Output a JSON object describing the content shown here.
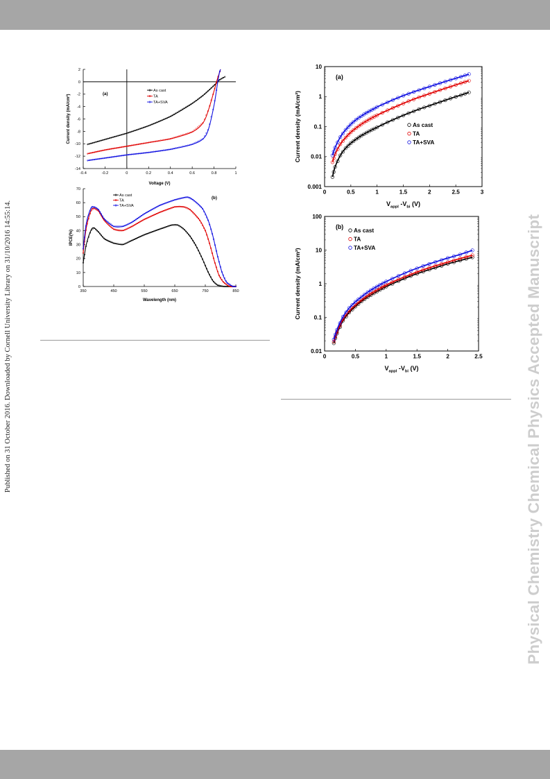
{
  "page": {
    "side_note": "Published on 31 October 2016. Downloaded by Cornell University Library on 31/10/2016 14:55:14.",
    "watermark": "Physical Chemistry Chemical Physics Accepted Manuscript",
    "colors": {
      "band": "#a6a6a6",
      "black": "#000000",
      "red": "#e00000",
      "blue": "#1010e0",
      "watermark": "#cdcdcd"
    }
  },
  "chart_data": [
    {
      "type": "line",
      "panel_label": "(a)",
      "xlabel": "Voltage (V)",
      "ylabel": "Current density (mA/cm²)",
      "xlim": [
        -0.4,
        1
      ],
      "ylim": [
        -14,
        2
      ],
      "x_ticks": [
        "-0.4",
        "-0.2",
        "0",
        "0.2",
        "0.4",
        "0.6",
        "0.8",
        "1"
      ],
      "y_ticks": [
        "2",
        "0",
        "-2",
        "-4",
        "-6",
        "-8",
        "-10",
        "-12",
        "-14"
      ],
      "legend": [
        "As cast",
        "TA",
        "TA+SVA"
      ],
      "legend_position": "top-center",
      "series": [
        {
          "name": "As cast",
          "color": "#000000",
          "points": [
            [
              -0.36,
              -10.1
            ],
            [
              -0.2,
              -9.3
            ],
            [
              0,
              -8.3
            ],
            [
              0.2,
              -7.1
            ],
            [
              0.4,
              -5.6
            ],
            [
              0.6,
              -3.5
            ],
            [
              0.7,
              -2.2
            ],
            [
              0.8,
              -0.6
            ],
            [
              0.85,
              0.3
            ],
            [
              0.9,
              0.8
            ]
          ]
        },
        {
          "name": "TA",
          "color": "#e00000",
          "points": [
            [
              -0.36,
              -11.6
            ],
            [
              -0.2,
              -11.0
            ],
            [
              0,
              -10.4
            ],
            [
              0.2,
              -9.8
            ],
            [
              0.4,
              -9.2
            ],
            [
              0.6,
              -8.1
            ],
            [
              0.7,
              -6.6
            ],
            [
              0.75,
              -4.5
            ],
            [
              0.8,
              -1.5
            ],
            [
              0.83,
              0.4
            ],
            [
              0.86,
              2.0
            ]
          ]
        },
        {
          "name": "TA+SVA",
          "color": "#1010e0",
          "points": [
            [
              -0.36,
              -12.7
            ],
            [
              -0.2,
              -12.3
            ],
            [
              0,
              -11.8
            ],
            [
              0.2,
              -11.4
            ],
            [
              0.4,
              -10.9
            ],
            [
              0.6,
              -10.1
            ],
            [
              0.7,
              -9.2
            ],
            [
              0.75,
              -7.6
            ],
            [
              0.8,
              -3.8
            ],
            [
              0.83,
              -0.5
            ],
            [
              0.85,
              1.5
            ],
            [
              0.86,
              2.0
            ]
          ]
        }
      ]
    },
    {
      "type": "line",
      "panel_label": "(b)",
      "xlabel": "Wavelength (nm)",
      "ylabel": "IPCE(%)",
      "xlim": [
        350,
        850
      ],
      "ylim": [
        0,
        70
      ],
      "x_ticks": [
        "350",
        "450",
        "550",
        "650",
        "750",
        "850"
      ],
      "y_ticks": [
        "70",
        "60",
        "50",
        "40",
        "30",
        "20",
        "10",
        "0"
      ],
      "legend": [
        "As cast",
        "TA",
        "TA+SVA"
      ],
      "legend_position": "top-left",
      "series": [
        {
          "name": "As cast",
          "color": "#000000",
          "points": [
            [
              350,
              17
            ],
            [
              360,
              30
            ],
            [
              375,
              40
            ],
            [
              385,
              42
            ],
            [
              400,
              39
            ],
            [
              420,
              34
            ],
            [
              450,
              31
            ],
            [
              480,
              30
            ],
            [
              510,
              33
            ],
            [
              550,
              37
            ],
            [
              600,
              41
            ],
            [
              640,
              44
            ],
            [
              660,
              44
            ],
            [
              680,
              41
            ],
            [
              700,
              36
            ],
            [
              720,
              29
            ],
            [
              740,
              20
            ],
            [
              760,
              10
            ],
            [
              775,
              4
            ],
            [
              790,
              1
            ],
            [
              810,
              0
            ],
            [
              850,
              0
            ]
          ]
        },
        {
          "name": "TA",
          "color": "#e00000",
          "points": [
            [
              350,
              24
            ],
            [
              360,
              42
            ],
            [
              375,
              54
            ],
            [
              385,
              56
            ],
            [
              400,
              54
            ],
            [
              420,
              47
            ],
            [
              450,
              41
            ],
            [
              480,
              40
            ],
            [
              510,
              43
            ],
            [
              550,
              48
            ],
            [
              600,
              53
            ],
            [
              650,
              57
            ],
            [
              680,
              57
            ],
            [
              700,
              55
            ],
            [
              730,
              48
            ],
            [
              750,
              40
            ],
            [
              765,
              30
            ],
            [
              780,
              18
            ],
            [
              795,
              8
            ],
            [
              810,
              3
            ],
            [
              830,
              0
            ],
            [
              850,
              0
            ]
          ]
        },
        {
          "name": "TA+SVA",
          "color": "#1010e0",
          "points": [
            [
              350,
              27
            ],
            [
              360,
              45
            ],
            [
              375,
              56
            ],
            [
              385,
              57
            ],
            [
              400,
              55
            ],
            [
              420,
              48
            ],
            [
              450,
              43
            ],
            [
              480,
              43
            ],
            [
              510,
              46
            ],
            [
              550,
              52
            ],
            [
              600,
              58
            ],
            [
              650,
              62
            ],
            [
              690,
              64
            ],
            [
              710,
              62
            ],
            [
              740,
              56
            ],
            [
              760,
              47
            ],
            [
              775,
              36
            ],
            [
              790,
              22
            ],
            [
              805,
              10
            ],
            [
              820,
              3
            ],
            [
              840,
              0
            ],
            [
              850,
              0
            ]
          ]
        }
      ]
    },
    {
      "type": "scatter",
      "panel_label": "(a)",
      "xlabel": "V_appl -V_bi (V)",
      "ylabel": "Current density (mA/cm²)",
      "xlim": [
        0,
        3
      ],
      "ylim": [
        0.001,
        10
      ],
      "y_scale": "log",
      "x_ticks": [
        "0",
        "0.5",
        "1",
        "1.5",
        "2",
        "2.5",
        "3"
      ],
      "y_ticks": [
        "10",
        "1",
        "0.1",
        "0.01",
        "0.001"
      ],
      "legend": [
        "As cast",
        "TA",
        "TA+SVA"
      ],
      "legend_position": "center-right",
      "fit_lines": true,
      "series": [
        {
          "name": "As cast",
          "color": "#000000",
          "points": [
            [
              0.15,
              0.0021
            ],
            [
              0.2,
              0.0045
            ],
            [
              0.3,
              0.011
            ],
            [
              0.4,
              0.019
            ],
            [
              0.5,
              0.028
            ],
            [
              0.6,
              0.038
            ],
            [
              0.7,
              0.05
            ],
            [
              0.8,
              0.063
            ],
            [
              0.9,
              0.078
            ],
            [
              1.0,
              0.095
            ],
            [
              1.2,
              0.14
            ],
            [
              1.4,
              0.2
            ],
            [
              1.6,
              0.28
            ],
            [
              1.8,
              0.38
            ],
            [
              2.0,
              0.5
            ],
            [
              2.2,
              0.66
            ],
            [
              2.4,
              0.87
            ],
            [
              2.6,
              1.12
            ],
            [
              2.75,
              1.38
            ]
          ]
        },
        {
          "name": "TA",
          "color": "#e00000",
          "points": [
            [
              0.15,
              0.0065
            ],
            [
              0.2,
              0.012
            ],
            [
              0.3,
              0.026
            ],
            [
              0.4,
              0.043
            ],
            [
              0.5,
              0.065
            ],
            [
              0.6,
              0.09
            ],
            [
              0.7,
              0.12
            ],
            [
              0.8,
              0.155
            ],
            [
              0.9,
              0.195
            ],
            [
              1.0,
              0.24
            ],
            [
              1.2,
              0.35
            ],
            [
              1.4,
              0.5
            ],
            [
              1.6,
              0.7
            ],
            [
              1.8,
              0.95
            ],
            [
              2.0,
              1.25
            ],
            [
              2.2,
              1.65
            ],
            [
              2.4,
              2.15
            ],
            [
              2.6,
              2.8
            ],
            [
              2.75,
              3.4
            ]
          ]
        },
        {
          "name": "TA+SVA",
          "color": "#1010e0",
          "points": [
            [
              0.15,
              0.011
            ],
            [
              0.2,
              0.02
            ],
            [
              0.3,
              0.045
            ],
            [
              0.4,
              0.078
            ],
            [
              0.5,
              0.12
            ],
            [
              0.6,
              0.17
            ],
            [
              0.7,
              0.225
            ],
            [
              0.8,
              0.29
            ],
            [
              0.9,
              0.36
            ],
            [
              1.0,
              0.45
            ],
            [
              1.2,
              0.65
            ],
            [
              1.4,
              0.92
            ],
            [
              1.6,
              1.25
            ],
            [
              1.8,
              1.65
            ],
            [
              2.0,
              2.15
            ],
            [
              2.2,
              2.8
            ],
            [
              2.4,
              3.6
            ],
            [
              2.6,
              4.6
            ],
            [
              2.75,
              5.6
            ]
          ]
        }
      ]
    },
    {
      "type": "scatter",
      "panel_label": "(b)",
      "xlabel": "V_appl -V_bi (V)",
      "ylabel": "Current density (mA/cm²)",
      "xlim": [
        0,
        2.5
      ],
      "ylim": [
        0.01,
        100
      ],
      "y_scale": "log",
      "x_ticks": [
        "0",
        "0.5",
        "1",
        "1.5",
        "2",
        "2.5"
      ],
      "y_ticks": [
        "100",
        "10",
        "1",
        "0.1",
        "0.01"
      ],
      "legend": [
        "As cast",
        "TA",
        "TA+SVA"
      ],
      "legend_position": "top-left",
      "fit_lines": true,
      "series": [
        {
          "name": "As cast",
          "color": "#000000",
          "points": [
            [
              0.15,
              0.017
            ],
            [
              0.2,
              0.033
            ],
            [
              0.3,
              0.08
            ],
            [
              0.4,
              0.14
            ],
            [
              0.5,
              0.21
            ],
            [
              0.6,
              0.3
            ],
            [
              0.7,
              0.4
            ],
            [
              0.8,
              0.52
            ],
            [
              0.9,
              0.66
            ],
            [
              1.0,
              0.82
            ],
            [
              1.2,
              1.2
            ],
            [
              1.4,
              1.7
            ],
            [
              1.6,
              2.3
            ],
            [
              1.8,
              3.0
            ],
            [
              2.0,
              3.9
            ],
            [
              2.2,
              4.9
            ],
            [
              2.4,
              6.1
            ]
          ]
        },
        {
          "name": "TA",
          "color": "#e00000",
          "points": [
            [
              0.15,
              0.019
            ],
            [
              0.2,
              0.036
            ],
            [
              0.3,
              0.088
            ],
            [
              0.4,
              0.155
            ],
            [
              0.5,
              0.235
            ],
            [
              0.6,
              0.33
            ],
            [
              0.7,
              0.45
            ],
            [
              0.8,
              0.58
            ],
            [
              0.9,
              0.74
            ],
            [
              1.0,
              0.92
            ],
            [
              1.2,
              1.35
            ],
            [
              1.4,
              1.9
            ],
            [
              1.6,
              2.6
            ],
            [
              1.8,
              3.4
            ],
            [
              2.0,
              4.4
            ],
            [
              2.2,
              5.6
            ],
            [
              2.4,
              7.0
            ]
          ]
        },
        {
          "name": "TA+SVA",
          "color": "#1010e0",
          "points": [
            [
              0.15,
              0.022
            ],
            [
              0.2,
              0.043
            ],
            [
              0.3,
              0.105
            ],
            [
              0.4,
              0.19
            ],
            [
              0.5,
              0.29
            ],
            [
              0.6,
              0.41
            ],
            [
              0.7,
              0.56
            ],
            [
              0.8,
              0.73
            ],
            [
              0.9,
              0.93
            ],
            [
              1.0,
              1.16
            ],
            [
              1.2,
              1.72
            ],
            [
              1.4,
              2.45
            ],
            [
              1.6,
              3.35
            ],
            [
              1.8,
              4.45
            ],
            [
              2.0,
              5.8
            ],
            [
              2.2,
              7.4
            ],
            [
              2.4,
              9.8
            ]
          ]
        }
      ]
    }
  ]
}
